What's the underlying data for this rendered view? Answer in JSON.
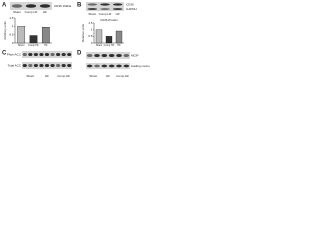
{
  "panels": [
    {
      "label": "A",
      "blot_rows": [
        "CD36 19kDa"
      ],
      "lanes": [
        "Sham",
        "Comp HF",
        "HF"
      ],
      "chart": {
        "type": "bar",
        "y_label": "Arbitrary units",
        "categories": [
          "Sham",
          "Comp HF",
          "HF"
        ],
        "values": [
          1.0,
          0.45,
          0.95
        ],
        "ylim": [
          0,
          1.5
        ],
        "yticks": [
          0,
          0.5,
          1,
          1.5
        ]
      }
    },
    {
      "label": "B",
      "blot_rows": [
        "CD36",
        "GAPDH"
      ],
      "lanes": [
        "Sham",
        "Comp HF",
        "HF"
      ],
      "chart": {
        "type": "bar",
        "title": "Cd36 Protein",
        "y_label": "Relative units",
        "categories": [
          "Sham",
          "Comp HF",
          "HF"
        ],
        "values": [
          1.0,
          0.5,
          0.9
        ],
        "ylim": [
          0,
          1.5
        ],
        "yticks": [
          0,
          0.5,
          1,
          1.5
        ]
      }
    },
    {
      "label": "C",
      "blot_rows": [
        "Phos-ACC",
        "Total ACC"
      ],
      "lanes": [
        "Sham",
        "HF",
        "Comp HF"
      ]
    },
    {
      "label": "D",
      "blot_rows": [
        "MCIP",
        "loading control"
      ],
      "lanes": [
        "Sham",
        "HF",
        "Comp HF"
      ]
    }
  ]
}
